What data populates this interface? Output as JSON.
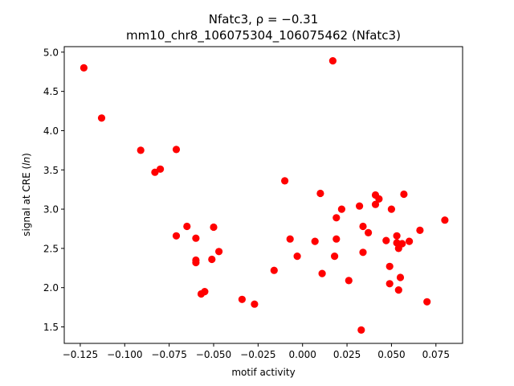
{
  "chart_data": {
    "type": "scatter",
    "title_line1": "Nfatc3, ρ = −0.31",
    "title_line2": "mm10_chr8_106075304_106075462 (Nfatc3)",
    "xlabel": "motif activity",
    "ylabel": "signal at CRE (ln)",
    "xlim": [
      -0.134,
      0.09
    ],
    "ylim": [
      1.29,
      5.07
    ],
    "xticks": [
      -0.125,
      -0.1,
      -0.075,
      -0.05,
      -0.025,
      0.0,
      0.025,
      0.05,
      0.075
    ],
    "xtick_labels": [
      "−0.125",
      "−0.100",
      "−0.075",
      "−0.050",
      "−0.025",
      "0.000",
      "0.025",
      "0.050",
      "0.075"
    ],
    "yticks": [
      1.5,
      2.0,
      2.5,
      3.0,
      3.5,
      4.0,
      4.5,
      5.0
    ],
    "ytick_labels": [
      "1.5",
      "2.0",
      "2.5",
      "3.0",
      "3.5",
      "4.0",
      "4.5",
      "5.0"
    ],
    "grid": false,
    "marker_color": "#ff0000",
    "points": [
      [
        -0.123,
        4.8
      ],
      [
        -0.113,
        4.16
      ],
      [
        -0.091,
        3.75
      ],
      [
        -0.083,
        3.47
      ],
      [
        -0.08,
        3.51
      ],
      [
        -0.071,
        3.76
      ],
      [
        -0.071,
        2.66
      ],
      [
        -0.065,
        2.78
      ],
      [
        -0.06,
        2.63
      ],
      [
        -0.06,
        2.35
      ],
      [
        -0.06,
        2.32
      ],
      [
        -0.057,
        1.92
      ],
      [
        -0.055,
        1.95
      ],
      [
        -0.051,
        2.36
      ],
      [
        -0.05,
        2.77
      ],
      [
        -0.047,
        2.46
      ],
      [
        -0.034,
        1.85
      ],
      [
        -0.027,
        1.79
      ],
      [
        -0.016,
        2.22
      ],
      [
        -0.01,
        3.36
      ],
      [
        -0.007,
        2.62
      ],
      [
        -0.003,
        2.4
      ],
      [
        0.007,
        2.59
      ],
      [
        0.01,
        3.2
      ],
      [
        0.011,
        2.18
      ],
      [
        0.017,
        4.89
      ],
      [
        0.018,
        2.4
      ],
      [
        0.019,
        2.89
      ],
      [
        0.019,
        2.62
      ],
      [
        0.022,
        3.0
      ],
      [
        0.026,
        2.09
      ],
      [
        0.032,
        3.04
      ],
      [
        0.033,
        1.46
      ],
      [
        0.034,
        2.78
      ],
      [
        0.034,
        2.45
      ],
      [
        0.037,
        2.7
      ],
      [
        0.041,
        3.18
      ],
      [
        0.041,
        3.06
      ],
      [
        0.043,
        3.13
      ],
      [
        0.047,
        2.6
      ],
      [
        0.049,
        2.27
      ],
      [
        0.049,
        2.05
      ],
      [
        0.05,
        3.0
      ],
      [
        0.053,
        2.66
      ],
      [
        0.053,
        2.57
      ],
      [
        0.054,
        2.5
      ],
      [
        0.054,
        1.97
      ],
      [
        0.055,
        2.13
      ],
      [
        0.056,
        2.56
      ],
      [
        0.057,
        3.19
      ],
      [
        0.06,
        2.59
      ],
      [
        0.066,
        2.73
      ],
      [
        0.07,
        1.82
      ],
      [
        0.08,
        2.86
      ]
    ]
  }
}
